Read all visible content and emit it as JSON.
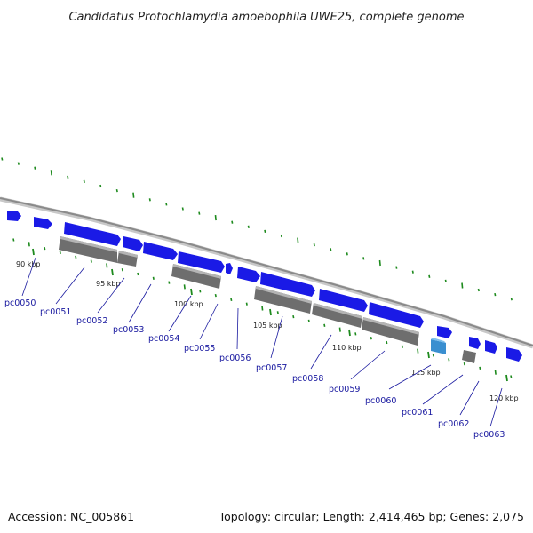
{
  "title": "Candidatus Protochlamydia amoebophila UWE25, complete genome",
  "footer": {
    "accession": "Accession: NC_005861",
    "summary": "Topology: circular; Length: 2,414,465 bp; Genes: 2,075"
  },
  "colors": {
    "backbone": "#999999",
    "gene_forward": "#1a1ae6",
    "gene_reverse": "#6e6e6e",
    "gene_highlight": "#3a8fd0",
    "gc_tick": "#1d8a1d",
    "label": "#1a1aa0"
  },
  "ticks": [
    {
      "label": "90 kbp"
    },
    {
      "label": "95 kbp"
    },
    {
      "label": "100 kbp"
    },
    {
      "label": "105 kbp"
    },
    {
      "label": "110 kbp"
    },
    {
      "label": "115 kbp"
    },
    {
      "label": "120 kbp"
    }
  ],
  "genes": [
    {
      "id": "pc0050"
    },
    {
      "id": "pc0051"
    },
    {
      "id": "pc0052"
    },
    {
      "id": "pc0053"
    },
    {
      "id": "pc0054"
    },
    {
      "id": "pc0055"
    },
    {
      "id": "pc0056"
    },
    {
      "id": "pc0057"
    },
    {
      "id": "pc0058"
    },
    {
      "id": "pc0059"
    },
    {
      "id": "pc0060"
    },
    {
      "id": "pc0061"
    },
    {
      "id": "pc0062"
    },
    {
      "id": "pc0063"
    }
  ]
}
